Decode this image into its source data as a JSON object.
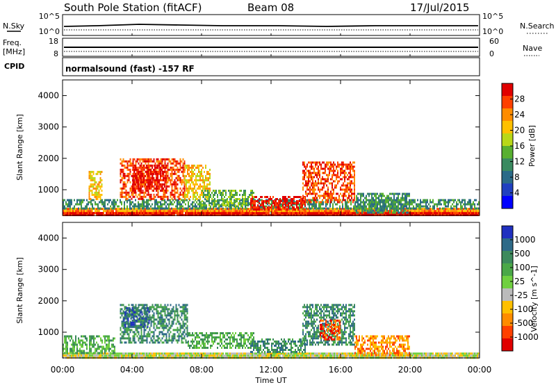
{
  "header": {
    "station": "South Pole Station (fitACF)",
    "beam": "Beam 08",
    "date": "17/Jul/2015"
  },
  "top_panels": {
    "nsky_label": "N.Sky",
    "nsky_ticks": [
      "10^5",
      "10^0"
    ],
    "nsearch_label": "N.Search",
    "nsearch_ticks": [
      "10^5",
      "10^0"
    ],
    "freq_label": "Freq.",
    "freq_unit": "[MHz]",
    "freq_ticks": [
      "18",
      "8"
    ],
    "nave_label": "Nave",
    "nave_ticks": [
      "60",
      "0"
    ],
    "cpid_label": "CPID",
    "cpid_text": "normalsound (fast) -157 RF"
  },
  "chart_data": [
    {
      "type": "heatmap",
      "name": "power",
      "xlabel": "Time UT",
      "ylabel": "Slant Range [km]",
      "colorbar_label": "Power [dB]",
      "xlim": [
        0,
        24
      ],
      "ylim": [
        180,
        4500
      ],
      "x_ticks": [
        "00:00",
        "04:00",
        "08:00",
        "12:00",
        "16:00",
        "20:00",
        "00:00"
      ],
      "y_ticks": [
        1000,
        2000,
        3000,
        4000
      ],
      "colorbar_ticks": [
        "28",
        "24",
        "20",
        "16",
        "12",
        "8",
        "4"
      ],
      "colorbar_colors": [
        "#e00000",
        "#ff4000",
        "#ff8c00",
        "#ffc000",
        "#b8d818",
        "#58b030",
        "#3a8a60",
        "#2a6a88",
        "#2040c0",
        "#0000ff"
      ],
      "regions": [
        {
          "t0": 0.0,
          "t1": 24.0,
          "r0": 180,
          "r1": 290,
          "level": 0
        },
        {
          "t0": 0.0,
          "t1": 24.0,
          "r0": 290,
          "r1": 420,
          "level": 2
        },
        {
          "t0": 0.0,
          "t1": 24.0,
          "r0": 420,
          "r1": 700,
          "level": 6
        },
        {
          "t0": 1.5,
          "t1": 2.3,
          "r0": 700,
          "r1": 1600,
          "level": 3
        },
        {
          "t0": 3.3,
          "t1": 7.0,
          "r0": 700,
          "r1": 2000,
          "level": 1
        },
        {
          "t0": 4.0,
          "t1": 6.0,
          "r0": 1000,
          "r1": 1800,
          "level": 0
        },
        {
          "t0": 7.0,
          "t1": 8.5,
          "r0": 700,
          "r1": 1800,
          "level": 3
        },
        {
          "t0": 8.0,
          "t1": 11.0,
          "r0": 500,
          "r1": 1000,
          "level": 5
        },
        {
          "t0": 10.8,
          "t1": 14.0,
          "r0": 400,
          "r1": 800,
          "level": 0
        },
        {
          "t0": 13.8,
          "t1": 16.8,
          "r0": 600,
          "r1": 1900,
          "level": 1
        },
        {
          "t0": 16.8,
          "t1": 20.0,
          "r0": 300,
          "r1": 900,
          "level": 6
        }
      ]
    },
    {
      "type": "heatmap",
      "name": "velocity",
      "xlabel": "Time UT",
      "ylabel": "Slant Range [km]",
      "colorbar_label": "Velocity [m s^-1]",
      "xlim": [
        0,
        24
      ],
      "ylim": [
        180,
        4500
      ],
      "x_ticks": [
        "00:00",
        "04:00",
        "08:00",
        "12:00",
        "16:00",
        "20:00",
        "00:00"
      ],
      "y_ticks": [
        1000,
        2000,
        3000,
        4000
      ],
      "colorbar_ticks": [
        "1000",
        "500",
        "100",
        "25",
        "-25",
        "-100",
        "-500",
        "-1000"
      ],
      "colorbar_colors": [
        "#2030c0",
        "#2e6a88",
        "#3c8a5c",
        "#4aa848",
        "#70d040",
        "#bbbbbb",
        "#ffc000",
        "#ff8c00",
        "#ff4000",
        "#e00000"
      ],
      "regions": [
        {
          "t0": 0.0,
          "t1": 24.0,
          "r0": 180,
          "r1": 350,
          "level": 5
        },
        {
          "t0": 0.0,
          "t1": 3.0,
          "r0": 350,
          "r1": 900,
          "level": 3
        },
        {
          "t0": 3.3,
          "t1": 7.2,
          "r0": 700,
          "r1": 1900,
          "level": 2
        },
        {
          "t0": 3.5,
          "t1": 5.0,
          "r0": 1200,
          "r1": 1800,
          "level": 1
        },
        {
          "t0": 7.2,
          "t1": 11.0,
          "r0": 500,
          "r1": 1000,
          "level": 3
        },
        {
          "t0": 10.8,
          "t1": 14.0,
          "r0": 400,
          "r1": 800,
          "level": 2
        },
        {
          "t0": 13.8,
          "t1": 16.8,
          "r0": 600,
          "r1": 1900,
          "level": 2
        },
        {
          "t0": 14.8,
          "t1": 16.0,
          "r0": 800,
          "r1": 1400,
          "level": 8
        },
        {
          "t0": 16.8,
          "t1": 20.0,
          "r0": 300,
          "r1": 900,
          "level": 7
        }
      ]
    }
  ]
}
